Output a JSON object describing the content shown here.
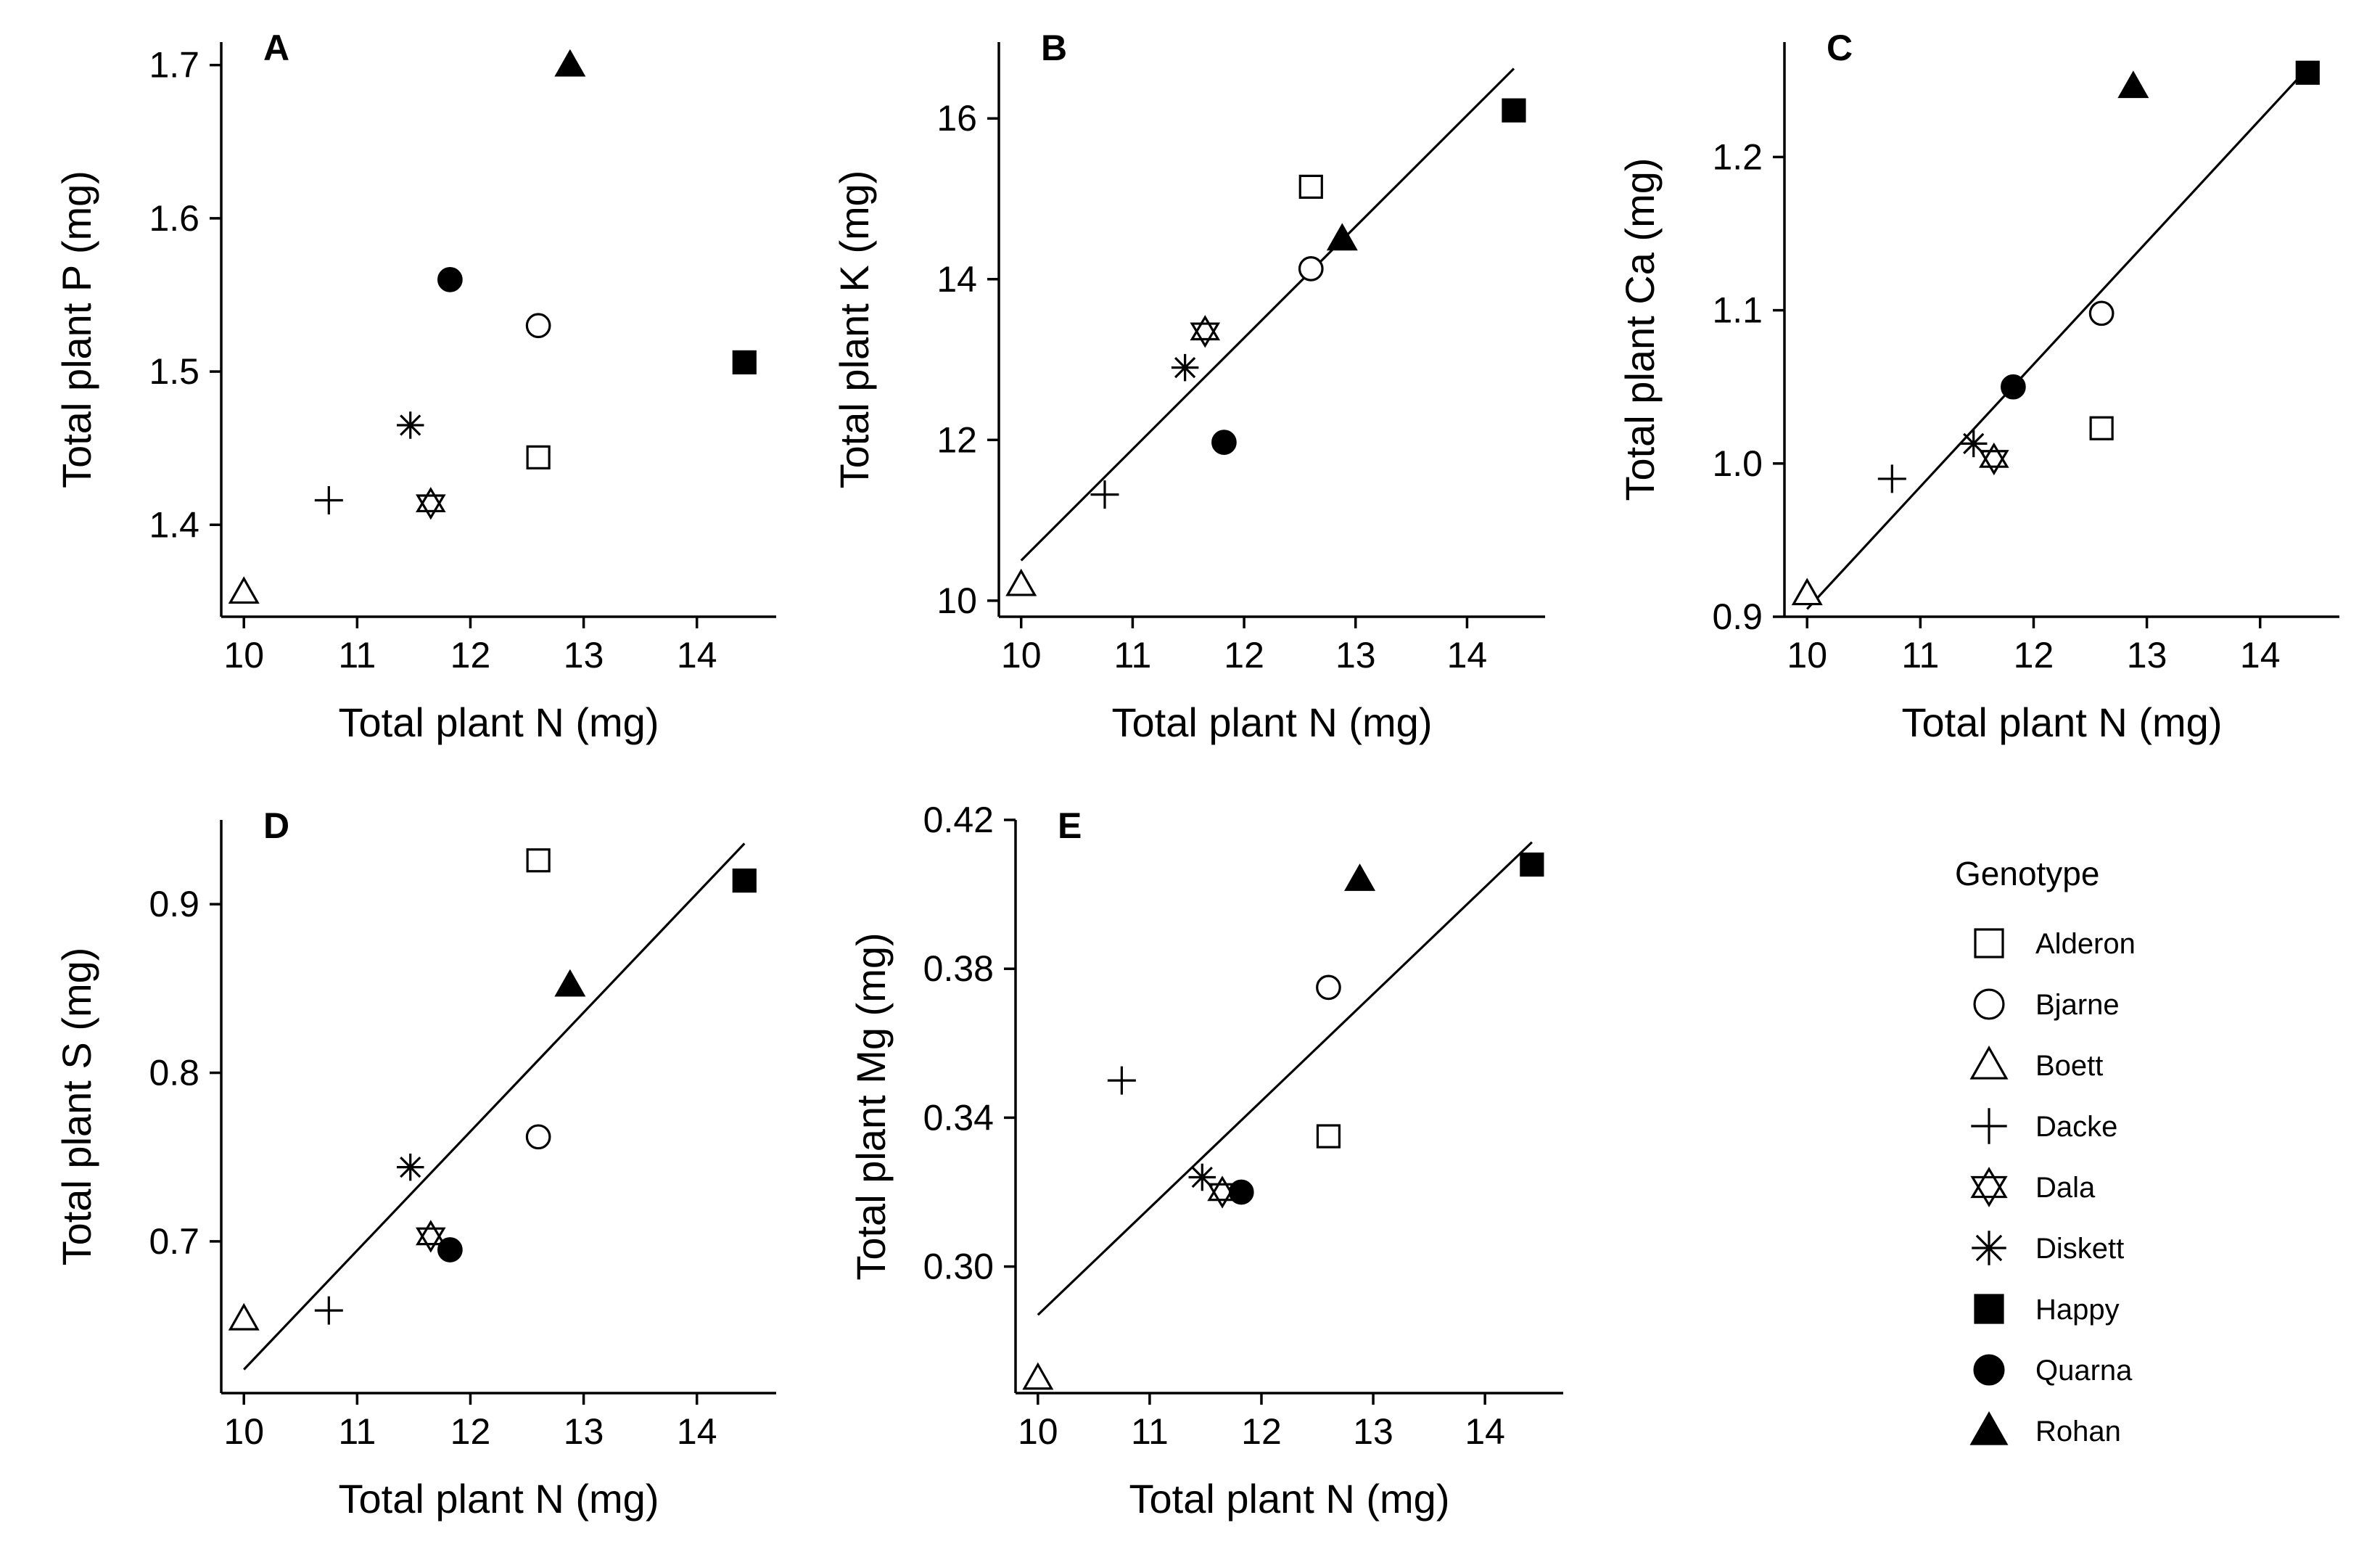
{
  "figure": {
    "legend": {
      "title": "Genotype",
      "placement": "right",
      "entries": [
        {
          "name": "Alderon",
          "marker": "open-square"
        },
        {
          "name": "Bjarne",
          "marker": "open-circle"
        },
        {
          "name": "Boett",
          "marker": "open-triangle"
        },
        {
          "name": "Dacke",
          "marker": "plus"
        },
        {
          "name": "Dala",
          "marker": "star-of-david"
        },
        {
          "name": "Diskett",
          "marker": "asterisk"
        },
        {
          "name": "Happy",
          "marker": "filled-square"
        },
        {
          "name": "Quarna",
          "marker": "filled-circle"
        },
        {
          "name": "Rohan",
          "marker": "filled-triangle"
        }
      ]
    }
  },
  "chart_data": [
    {
      "type": "scatter",
      "panel": "A",
      "title": "",
      "xlabel": "Total plant N (mg)",
      "ylabel": "Total plant P  (mg)",
      "xlim": [
        9.8,
        14.7
      ],
      "ylim": [
        1.34,
        1.715
      ],
      "xticks": [
        10,
        11,
        12,
        13,
        14
      ],
      "xtick_labels": [
        "10",
        "11",
        "12",
        "13",
        "14"
      ],
      "yticks": [
        1.4,
        1.5,
        1.6,
        1.7
      ],
      "ytick_labels": [
        "1.4",
        "1.5",
        "1.6",
        "1.7"
      ],
      "regression_line": null,
      "points": [
        {
          "genotype": "Alderon",
          "x": 12.6,
          "y": 1.444
        },
        {
          "genotype": "Bjarne",
          "x": 12.6,
          "y": 1.53
        },
        {
          "genotype": "Boett",
          "x": 10.0,
          "y": 1.356
        },
        {
          "genotype": "Dacke",
          "x": 10.75,
          "y": 1.416
        },
        {
          "genotype": "Dala",
          "x": 11.65,
          "y": 1.414
        },
        {
          "genotype": "Diskett",
          "x": 11.47,
          "y": 1.465
        },
        {
          "genotype": "Happy",
          "x": 14.42,
          "y": 1.506
        },
        {
          "genotype": "Quarna",
          "x": 11.82,
          "y": 1.56
        },
        {
          "genotype": "Rohan",
          "x": 12.88,
          "y": 1.7
        }
      ]
    },
    {
      "type": "scatter",
      "panel": "B",
      "title": "",
      "xlabel": "Total plant N (mg)",
      "ylabel": "Total plant K  (mg)",
      "xlim": [
        9.8,
        14.7
      ],
      "ylim": [
        9.8,
        16.95
      ],
      "xticks": [
        10,
        11,
        12,
        13,
        14
      ],
      "xtick_labels": [
        "10",
        "11",
        "12",
        "13",
        "14"
      ],
      "yticks": [
        10,
        12,
        14,
        16
      ],
      "ytick_labels": [
        "10",
        "12",
        "14",
        "16"
      ],
      "regression_line": {
        "x": [
          10.0,
          14.42
        ],
        "y": [
          10.5,
          16.62
        ]
      },
      "points": [
        {
          "genotype": "Alderon",
          "x": 12.6,
          "y": 15.15
        },
        {
          "genotype": "Bjarne",
          "x": 12.6,
          "y": 14.13
        },
        {
          "genotype": "Boett",
          "x": 10.0,
          "y": 10.2
        },
        {
          "genotype": "Dacke",
          "x": 10.75,
          "y": 11.32
        },
        {
          "genotype": "Dala",
          "x": 11.65,
          "y": 13.35
        },
        {
          "genotype": "Diskett",
          "x": 11.47,
          "y": 12.9
        },
        {
          "genotype": "Happy",
          "x": 14.42,
          "y": 16.1
        },
        {
          "genotype": "Quarna",
          "x": 11.82,
          "y": 11.97
        },
        {
          "genotype": "Rohan",
          "x": 12.88,
          "y": 14.5
        }
      ]
    },
    {
      "type": "scatter",
      "panel": "C",
      "title": "",
      "xlabel": "Total plant N (mg)",
      "ylabel": "Total plant Ca  (mg)",
      "xlim": [
        9.8,
        14.7
      ],
      "ylim": [
        0.9,
        1.275
      ],
      "xticks": [
        10,
        11,
        12,
        13,
        14
      ],
      "xtick_labels": [
        "10",
        "11",
        "12",
        "13",
        "14"
      ],
      "yticks": [
        0.9,
        1.0,
        1.1,
        1.2
      ],
      "ytick_labels": [
        "0.9",
        "1.0",
        "1.1",
        "1.2"
      ],
      "regression_line": {
        "x": [
          10.0,
          14.42
        ],
        "y": [
          0.905,
          1.258
        ]
      },
      "points": [
        {
          "genotype": "Alderon",
          "x": 12.6,
          "y": 1.023
        },
        {
          "genotype": "Bjarne",
          "x": 12.6,
          "y": 1.098
        },
        {
          "genotype": "Boett",
          "x": 10.0,
          "y": 0.915
        },
        {
          "genotype": "Dacke",
          "x": 10.75,
          "y": 0.99
        },
        {
          "genotype": "Dala",
          "x": 11.65,
          "y": 1.003
        },
        {
          "genotype": "Diskett",
          "x": 11.47,
          "y": 1.013
        },
        {
          "genotype": "Happy",
          "x": 14.42,
          "y": 1.255
        },
        {
          "genotype": "Quarna",
          "x": 11.82,
          "y": 1.05
        },
        {
          "genotype": "Rohan",
          "x": 12.88,
          "y": 1.246
        }
      ]
    },
    {
      "type": "scatter",
      "panel": "D",
      "title": "",
      "xlabel": "Total plant N (mg)",
      "ylabel": "Total plant S  (mg)",
      "xlim": [
        9.8,
        14.7
      ],
      "ylim": [
        0.61,
        0.95
      ],
      "xticks": [
        10,
        11,
        12,
        13,
        14
      ],
      "xtick_labels": [
        "10",
        "11",
        "12",
        "13",
        "14"
      ],
      "yticks": [
        0.7,
        0.8,
        0.9
      ],
      "ytick_labels": [
        "0.7",
        "0.8",
        "0.9"
      ],
      "regression_line": {
        "x": [
          10.0,
          14.42
        ],
        "y": [
          0.624,
          0.936
        ]
      },
      "points": [
        {
          "genotype": "Alderon",
          "x": 12.6,
          "y": 0.926
        },
        {
          "genotype": "Bjarne",
          "x": 12.6,
          "y": 0.762
        },
        {
          "genotype": "Boett",
          "x": 10.0,
          "y": 0.654
        },
        {
          "genotype": "Dacke",
          "x": 10.75,
          "y": 0.659
        },
        {
          "genotype": "Dala",
          "x": 11.65,
          "y": 0.703
        },
        {
          "genotype": "Diskett",
          "x": 11.47,
          "y": 0.744
        },
        {
          "genotype": "Happy",
          "x": 14.42,
          "y": 0.914
        },
        {
          "genotype": "Quarna",
          "x": 11.82,
          "y": 0.695
        },
        {
          "genotype": "Rohan",
          "x": 12.88,
          "y": 0.852
        }
      ]
    },
    {
      "type": "scatter",
      "panel": "E",
      "title": "",
      "xlabel": "Total plant N (mg)",
      "ylabel": "Total plant Mg  (mg)",
      "xlim": [
        9.8,
        14.7
      ],
      "ylim": [
        0.266,
        0.42
      ],
      "xticks": [
        10,
        11,
        12,
        13,
        14
      ],
      "xtick_labels": [
        "10",
        "11",
        "12",
        "13",
        "14"
      ],
      "yticks": [
        0.3,
        0.34,
        0.38,
        0.42
      ],
      "ytick_labels": [
        "0.30",
        "0.34",
        "0.38",
        "0.42"
      ],
      "regression_line": {
        "x": [
          10.0,
          14.42
        ],
        "y": [
          0.287,
          0.414
        ]
      },
      "points": [
        {
          "genotype": "Alderon",
          "x": 12.6,
          "y": 0.335
        },
        {
          "genotype": "Bjarne",
          "x": 12.6,
          "y": 0.375
        },
        {
          "genotype": "Boett",
          "x": 10.0,
          "y": 0.27
        },
        {
          "genotype": "Dacke",
          "x": 10.75,
          "y": 0.35
        },
        {
          "genotype": "Dala",
          "x": 11.65,
          "y": 0.32
        },
        {
          "genotype": "Diskett",
          "x": 11.47,
          "y": 0.324
        },
        {
          "genotype": "Happy",
          "x": 14.42,
          "y": 0.408
        },
        {
          "genotype": "Quarna",
          "x": 11.82,
          "y": 0.32
        },
        {
          "genotype": "Rohan",
          "x": 12.88,
          "y": 0.404
        }
      ]
    }
  ]
}
